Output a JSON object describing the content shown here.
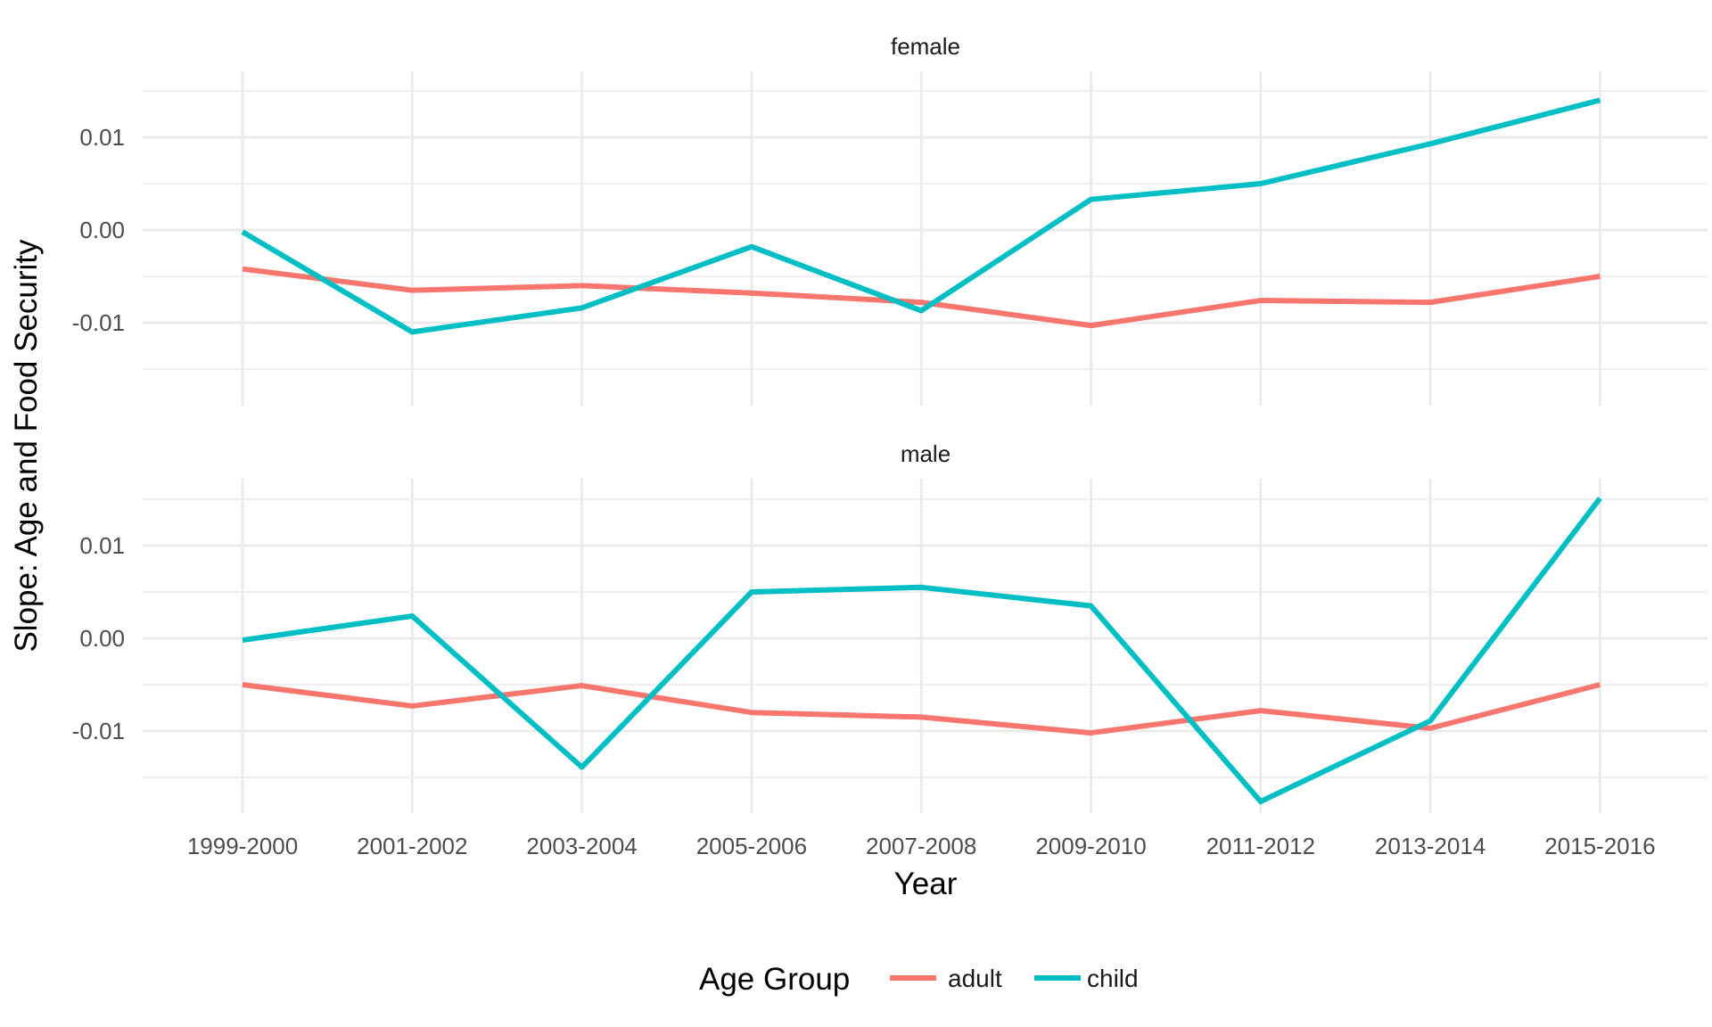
{
  "colors": {
    "adult": "#F8766D",
    "child": "#00BFC4",
    "grid": "#EBEBEB"
  },
  "chart_data": {
    "type": "line",
    "xlabel": "Year",
    "ylabel": "Slope: Age and Food Security",
    "legend": {
      "title": "Age Group",
      "position": "bottom",
      "entries": [
        "adult",
        "child"
      ]
    },
    "categories": [
      "1999-2000",
      "2001-2002",
      "2003-2004",
      "2005-2006",
      "2007-2008",
      "2009-2010",
      "2011-2012",
      "2013-2014",
      "2015-2016"
    ],
    "ylim": [
      -0.015,
      0.017
    ],
    "yticks": [
      -0.01,
      0.0,
      0.01
    ],
    "ytick_labels": [
      "-0.01",
      "0.00",
      "0.01"
    ],
    "grid": true,
    "panels": [
      {
        "label": "female",
        "series": [
          {
            "name": "adult",
            "values": [
              -0.0042,
              -0.0065,
              -0.006,
              -0.0068,
              -0.0078,
              -0.0103,
              -0.0076,
              -0.0078,
              -0.005
            ]
          },
          {
            "name": "child",
            "values": [
              -0.0002,
              -0.011,
              -0.0084,
              -0.0018,
              -0.0087,
              0.0033,
              0.005,
              0.0093,
              0.014
            ]
          }
        ]
      },
      {
        "label": "male",
        "series": [
          {
            "name": "adult",
            "values": [
              -0.005,
              -0.0073,
              -0.0051,
              -0.008,
              -0.0085,
              -0.0102,
              -0.0078,
              -0.0097,
              -0.005
            ]
          },
          {
            "name": "child",
            "values": [
              -0.0002,
              0.0024,
              -0.0139,
              0.005,
              0.0055,
              0.0035,
              -0.0176,
              -0.0089,
              0.0151
            ]
          }
        ]
      }
    ]
  }
}
